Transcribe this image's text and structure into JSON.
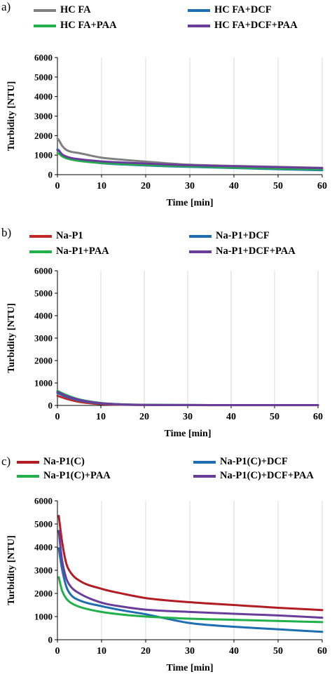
{
  "chart_data": [
    {
      "panel_letter": "a)",
      "type": "line",
      "xlabel": "Time [min]",
      "ylabel": "Turbidity [NTU]",
      "xlim": [
        0,
        60
      ],
      "ylim": [
        0,
        6000
      ],
      "xticks": [
        0,
        10,
        20,
        30,
        40,
        50,
        60
      ],
      "yticks": [
        0,
        1000,
        2000,
        3000,
        4000,
        5000,
        6000
      ],
      "grid": "vertical",
      "legend": "top",
      "series": [
        {
          "name": "HC FA",
          "color": "#808080",
          "x": [
            0,
            0.3,
            1,
            2,
            3,
            5,
            10,
            15,
            20,
            25,
            30,
            40,
            50,
            60
          ],
          "y": [
            1850,
            1780,
            1500,
            1270,
            1180,
            1100,
            870,
            760,
            670,
            580,
            510,
            450,
            400,
            350
          ]
        },
        {
          "name": "HC FA+DCF",
          "color": "#1f6eb0",
          "x": [
            0,
            0.3,
            1,
            2,
            3,
            5,
            10,
            15,
            20,
            25,
            30,
            40,
            50,
            60
          ],
          "y": [
            1300,
            1250,
            1050,
            900,
            820,
            730,
            590,
            520,
            470,
            430,
            400,
            340,
            280,
            230
          ]
        },
        {
          "name": "HC FA+PAA",
          "color": "#22b04b",
          "x": [
            0,
            0.3,
            1,
            2,
            3,
            5,
            10,
            15,
            20,
            25,
            30,
            40,
            50,
            60
          ],
          "y": [
            1100,
            1080,
            950,
            840,
            780,
            700,
            600,
            540,
            500,
            460,
            420,
            360,
            310,
            270
          ]
        },
        {
          "name": "HC FA+DCF+PAA",
          "color": "#6a3d9a",
          "x": [
            0,
            0.3,
            1,
            2,
            3,
            5,
            10,
            15,
            20,
            25,
            30,
            40,
            50,
            60
          ],
          "y": [
            1250,
            1220,
            1050,
            930,
            860,
            790,
            680,
            620,
            570,
            520,
            480,
            430,
            380,
            330
          ]
        }
      ]
    },
    {
      "panel_letter": "b)",
      "type": "line",
      "xlabel": "Time [min]",
      "ylabel": "Turbidity [NTU]",
      "xlim": [
        0,
        60
      ],
      "ylim": [
        0,
        6000
      ],
      "xticks": [
        0,
        10,
        20,
        30,
        40,
        50,
        60
      ],
      "yticks": [
        0,
        1000,
        2000,
        3000,
        4000,
        5000,
        6000
      ],
      "grid": "vertical",
      "legend": "top",
      "series": [
        {
          "name": "Na-P1",
          "color": "#c0282b",
          "x": [
            0,
            2,
            5,
            10,
            15,
            20,
            30,
            40,
            50,
            60
          ],
          "y": [
            430,
            300,
            160,
            60,
            30,
            20,
            15,
            10,
            10,
            10
          ]
        },
        {
          "name": "Na-P1+DCF",
          "color": "#1f6eb0",
          "x": [
            0,
            2,
            5,
            10,
            15,
            20,
            30,
            40,
            50,
            60
          ],
          "y": [
            550,
            390,
            220,
            90,
            40,
            25,
            20,
            15,
            15,
            15
          ]
        },
        {
          "name": "Na-P1+PAA",
          "color": "#22b04b",
          "x": [
            0,
            2,
            5,
            10,
            15,
            20,
            30,
            40,
            50,
            60
          ],
          "y": [
            650,
            470,
            270,
            110,
            50,
            30,
            20,
            15,
            15,
            15
          ]
        },
        {
          "name": "Na-P1+DCF+PAA",
          "color": "#6a3d9a",
          "x": [
            0,
            2,
            5,
            10,
            15,
            20,
            30,
            40,
            50,
            60
          ],
          "y": [
            600,
            430,
            250,
            100,
            45,
            25,
            20,
            15,
            15,
            15
          ]
        }
      ]
    },
    {
      "panel_letter": "c)",
      "type": "line",
      "xlabel": "Time [min]",
      "ylabel": "Turbidity [NTU]",
      "xlim": [
        0,
        60
      ],
      "ylim": [
        0,
        6000
      ],
      "xticks": [
        0,
        10,
        20,
        30,
        40,
        50,
        60
      ],
      "yticks": [
        0,
        1000,
        2000,
        3000,
        4000,
        5000,
        6000
      ],
      "grid": "vertical",
      "legend": "top",
      "series": [
        {
          "name": "Na-P1(C)",
          "color": "#b01e24",
          "x": [
            0.3,
            1,
            2,
            3,
            5,
            10,
            15,
            20,
            30,
            40,
            50,
            60
          ],
          "y": [
            5350,
            4300,
            3300,
            2900,
            2550,
            2200,
            1980,
            1800,
            1620,
            1500,
            1380,
            1280
          ]
        },
        {
          "name": "Na-P1(C)+DCF",
          "color": "#1f6eb0",
          "x": [
            0.3,
            1,
            2,
            3,
            5,
            10,
            15,
            20,
            25,
            30,
            40,
            50,
            60
          ],
          "y": [
            3950,
            3100,
            2300,
            1950,
            1700,
            1450,
            1260,
            1100,
            900,
            720,
            560,
            450,
            340
          ]
        },
        {
          "name": "Na-P1(C)+PAA",
          "color": "#22b04b",
          "x": [
            0.3,
            1,
            2,
            3,
            5,
            10,
            15,
            20,
            30,
            40,
            50,
            60
          ],
          "y": [
            2700,
            2150,
            1780,
            1600,
            1420,
            1200,
            1080,
            1000,
            910,
            860,
            810,
            760
          ]
        },
        {
          "name": "Na-P1(C)+DCF+PAA",
          "color": "#6a3d9a",
          "x": [
            0.3,
            1,
            2,
            3,
            5,
            10,
            15,
            20,
            30,
            40,
            50,
            60
          ],
          "y": [
            4700,
            3500,
            2650,
            2300,
            2000,
            1600,
            1420,
            1300,
            1200,
            1120,
            1050,
            950
          ]
        }
      ]
    }
  ]
}
